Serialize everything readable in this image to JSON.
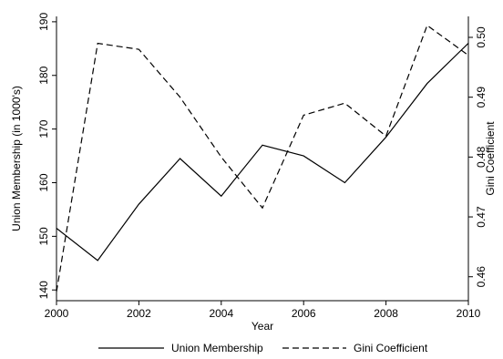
{
  "chart_data": {
    "type": "line",
    "x": [
      2000,
      2001,
      2002,
      2003,
      2004,
      2005,
      2006,
      2007,
      2008,
      2009,
      2010
    ],
    "xlabel": "Year",
    "x_ticks": [
      2000,
      2002,
      2004,
      2006,
      2008,
      2010
    ],
    "xlim": [
      2000,
      2010
    ],
    "ylabel_left": "Union Membership (in 1000's)",
    "ylim_left": [
      138,
      191
    ],
    "yticks_left": [
      140,
      150,
      160,
      170,
      180,
      190
    ],
    "ylabel_right": "Gini Coefficient",
    "ylim_right": [
      0.456,
      0.5035
    ],
    "yticks_right": [
      0.46,
      0.47,
      0.48,
      0.49,
      0.5
    ],
    "ytick_labels_right": [
      "0.46",
      "0.47",
      "0.48",
      "0.49",
      "0.50"
    ],
    "grid": false,
    "legend_position": "bottom",
    "series": [
      {
        "name": "Union Membership",
        "axis": "left",
        "style": "solid",
        "values": [
          151.5,
          145.5,
          156,
          164.5,
          157.5,
          167,
          165,
          160,
          168.5,
          178.5,
          186
        ]
      },
      {
        "name": "Gini Coefficient",
        "axis": "right",
        "style": "dashed",
        "values": [
          0.4575,
          0.499,
          0.498,
          0.49,
          0.48,
          0.4715,
          0.487,
          0.489,
          0.4835,
          0.502,
          0.497
        ]
      }
    ]
  }
}
